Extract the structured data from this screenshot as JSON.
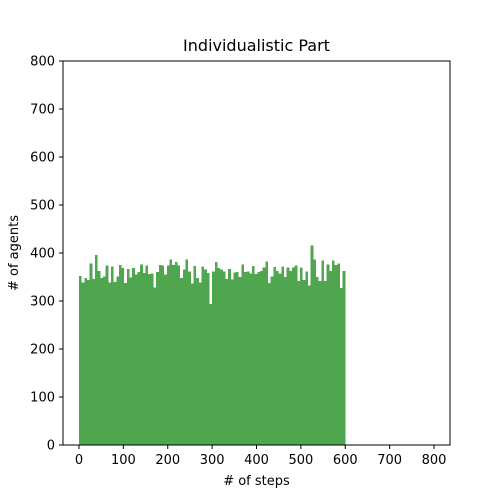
{
  "chart_data": {
    "type": "bar",
    "title": "Individualistic Part",
    "xlabel": "# of steps",
    "ylabel": "# of agents",
    "bin_width": 6,
    "bin_start": 0,
    "xlim": [
      -36,
      836
    ],
    "ylim": [
      0,
      800
    ],
    "x_ticks": [
      0,
      100,
      200,
      300,
      400,
      500,
      600,
      700,
      800
    ],
    "y_ticks": [
      0,
      100,
      200,
      300,
      400,
      500,
      600,
      700,
      800
    ],
    "bar_color": "#4fa64f",
    "grid": false,
    "values": [
      352,
      339,
      348,
      344,
      378,
      346,
      396,
      362,
      348,
      351,
      374,
      339,
      372,
      340,
      351,
      375,
      369,
      338,
      367,
      349,
      369,
      355,
      360,
      376,
      358,
      374,
      356,
      357,
      328,
      360,
      375,
      374,
      355,
      374,
      386,
      375,
      381,
      374,
      348,
      366,
      386,
      361,
      336,
      373,
      348,
      339,
      372,
      366,
      358,
      294,
      361,
      381,
      369,
      366,
      361,
      346,
      367,
      345,
      359,
      360,
      350,
      376,
      360,
      361,
      357,
      373,
      356,
      360,
      363,
      370,
      382,
      337,
      351,
      371,
      362,
      357,
      372,
      350,
      370,
      362,
      370,
      374,
      342,
      370,
      344,
      361,
      332,
      416,
      386,
      350,
      342,
      384,
      342,
      376,
      363,
      384,
      375,
      378,
      327,
      362
    ]
  }
}
